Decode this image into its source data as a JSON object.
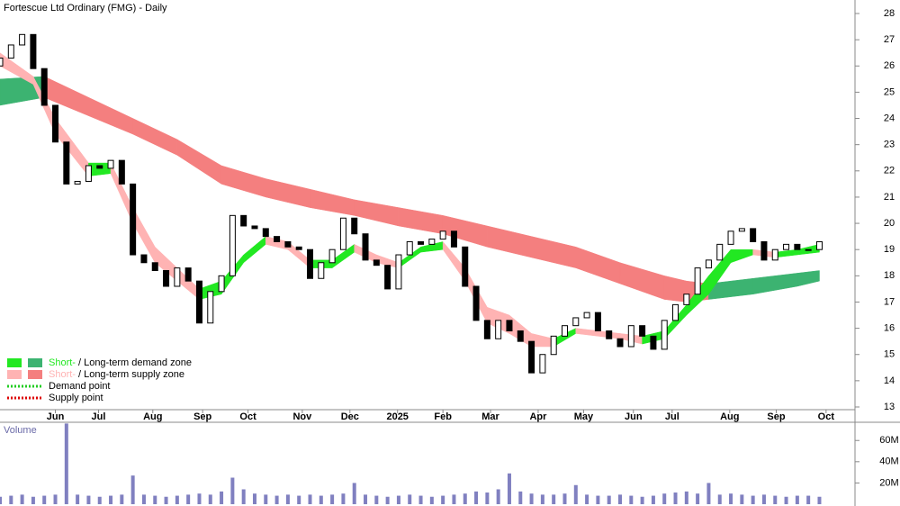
{
  "chart_data": {
    "type": "candlestick",
    "title": "Fortescue Ltd Ordinary (FMG) - Daily",
    "x": [
      0,
      1,
      2,
      3,
      4,
      5,
      6,
      7,
      8,
      9,
      10,
      11,
      12,
      13,
      14,
      15,
      16,
      17,
      18,
      19,
      20,
      21,
      22,
      23,
      24,
      25,
      26,
      27,
      28,
      29,
      30,
      31,
      32,
      33,
      34,
      35,
      36,
      37,
      38,
      39,
      40,
      41,
      42,
      43,
      44,
      45,
      46,
      47,
      48,
      49,
      50,
      51,
      52,
      53,
      54,
      55,
      56,
      57,
      58,
      59,
      60,
      61,
      62,
      63,
      64,
      65,
      66,
      67,
      68,
      69,
      70,
      71,
      72,
      73,
      74
    ],
    "open": [
      26.0,
      26.3,
      26.8,
      27.2,
      25.9,
      24.5,
      23.1,
      21.5,
      21.6,
      22.2,
      22.1,
      22.4,
      21.5,
      18.8,
      18.5,
      18.2,
      17.6,
      18.3,
      17.8,
      16.2,
      17.4,
      18.0,
      20.3,
      19.9,
      19.8,
      19.5,
      19.3,
      19.1,
      19.0,
      17.9,
      18.5,
      19.0,
      20.2,
      19.6,
      18.6,
      18.4,
      17.5,
      18.8,
      19.3,
      19.2,
      19.4,
      19.7,
      19.1,
      17.6,
      16.3,
      15.6,
      16.3,
      15.9,
      15.5,
      14.3,
      15.0,
      15.7,
      16.1,
      16.4,
      16.6,
      15.9,
      15.6,
      15.3,
      16.1,
      15.7,
      15.2,
      16.3,
      16.9,
      17.3,
      18.3,
      18.6,
      19.2,
      19.7,
      19.8,
      19.3,
      18.6,
      19.0,
      19.2,
      19.0,
      19.0
    ],
    "close": [
      26.3,
      26.8,
      27.2,
      25.9,
      24.5,
      23.1,
      21.5,
      21.6,
      22.2,
      22.1,
      22.4,
      21.5,
      18.8,
      18.5,
      18.2,
      17.6,
      18.3,
      17.8,
      16.2,
      17.4,
      18.0,
      20.3,
      19.9,
      19.8,
      19.5,
      19.3,
      19.1,
      19.0,
      17.9,
      18.5,
      19.0,
      20.2,
      19.6,
      18.6,
      18.4,
      17.5,
      18.8,
      19.3,
      19.2,
      19.4,
      19.7,
      19.1,
      17.6,
      16.3,
      15.6,
      16.3,
      15.9,
      15.5,
      14.3,
      15.0,
      15.7,
      16.1,
      16.4,
      16.6,
      15.9,
      15.6,
      15.3,
      16.1,
      15.7,
      15.2,
      16.3,
      16.9,
      17.3,
      18.3,
      18.6,
      19.2,
      19.7,
      19.8,
      19.3,
      18.6,
      19.0,
      19.2,
      19.0,
      19.0,
      19.3
    ],
    "short_band": {
      "x": [
        0,
        3,
        5,
        8,
        10,
        12,
        14,
        16,
        18,
        20,
        22,
        24,
        26,
        28,
        30,
        32,
        34,
        36,
        38,
        40,
        42,
        44,
        46,
        48,
        50,
        52,
        54,
        56,
        58,
        60,
        62,
        64,
        66,
        68,
        70,
        72,
        74
      ],
      "upper": [
        26.5,
        25.6,
        24.0,
        22.3,
        22.3,
        20.6,
        19.1,
        18.3,
        17.5,
        17.8,
        18.8,
        19.5,
        19.3,
        18.6,
        18.6,
        19.2,
        18.8,
        18.5,
        19.1,
        19.3,
        18.3,
        16.8,
        16.5,
        15.8,
        15.6,
        16.0,
        15.9,
        15.8,
        15.7,
        15.9,
        16.9,
        18.0,
        19.0,
        19.0,
        18.9,
        19.0,
        19.2
      ],
      "lower": [
        26.0,
        25.3,
        23.4,
        21.8,
        21.9,
        20.0,
        18.5,
        17.8,
        17.1,
        17.3,
        18.5,
        19.2,
        19.0,
        18.3,
        18.3,
        18.9,
        18.5,
        18.3,
        18.9,
        19.0,
        17.8,
        16.2,
        15.8,
        15.3,
        15.3,
        15.8,
        15.7,
        15.6,
        15.4,
        15.6,
        16.5,
        17.3,
        18.5,
        18.8,
        18.7,
        18.8,
        18.9
      ]
    },
    "long_band": {
      "x": [
        0,
        4,
        12,
        16,
        20,
        24,
        28,
        32,
        36,
        40,
        44,
        48,
        52,
        56,
        60,
        62,
        64,
        68,
        72,
        74
      ],
      "upper": [
        25.5,
        25.6,
        24.0,
        23.2,
        22.2,
        21.7,
        21.3,
        20.9,
        20.6,
        20.3,
        19.9,
        19.5,
        19.1,
        18.5,
        18.0,
        17.8,
        17.7,
        17.9,
        18.1,
        18.2
      ],
      "lower": [
        24.5,
        24.8,
        23.4,
        22.6,
        21.5,
        21.0,
        20.6,
        20.3,
        19.9,
        19.6,
        19.1,
        18.7,
        18.3,
        17.7,
        17.1,
        17.0,
        17.1,
        17.3,
        17.6,
        17.8
      ]
    },
    "colors": {
      "up": "#ffffff",
      "down": "#000000",
      "short_demand": "#22e822",
      "long_demand": "#3cb371",
      "short_supply": "#ffb3b3",
      "long_supply": "#f47f7f",
      "demand_point": "#22cc22",
      "supply_point": "#dd0000",
      "volume": "#8080c0"
    },
    "xlim": [
      0,
      76.4
    ],
    "xticks": [
      {
        "value": 5.0,
        "label": "Jun"
      },
      {
        "value": 8.9,
        "label": "Jul"
      },
      {
        "value": 13.8,
        "label": "Aug"
      },
      {
        "value": 18.3,
        "label": "Sep"
      },
      {
        "value": 22.4,
        "label": "Oct"
      },
      {
        "value": 27.3,
        "label": "Nov"
      },
      {
        "value": 31.6,
        "label": "Dec"
      },
      {
        "value": 35.9,
        "label": "2025"
      },
      {
        "value": 40.0,
        "label": "Feb"
      },
      {
        "value": 44.3,
        "label": "Mar"
      },
      {
        "value": 48.6,
        "label": "Apr"
      },
      {
        "value": 52.7,
        "label": "May"
      },
      {
        "value": 57.2,
        "label": "Jun"
      },
      {
        "value": 60.7,
        "label": "Jul"
      },
      {
        "value": 65.9,
        "label": "Aug"
      },
      {
        "value": 70.1,
        "label": "Sep"
      },
      {
        "value": 74.6,
        "label": "Oct"
      }
    ],
    "ylim": [
      13,
      28
    ],
    "yticks": [
      13,
      14,
      15,
      16,
      17,
      18,
      19,
      20,
      21,
      22,
      23,
      24,
      25,
      26,
      27,
      28
    ],
    "legend": [
      {
        "short": "Short-",
        "long": "/ Long-term demand zone"
      },
      {
        "short": "Short-",
        "long": "/ Long-term supply zone"
      },
      {
        "text": "Demand point"
      },
      {
        "text": "Supply point"
      }
    ],
    "volume": {
      "label": "Volume",
      "values": [
        7,
        8,
        9,
        7,
        8,
        9,
        76,
        9,
        8,
        7,
        8,
        9,
        27,
        9,
        8,
        7,
        8,
        9,
        10,
        9,
        12,
        25,
        14,
        10,
        9,
        8,
        9,
        8,
        9,
        8,
        9,
        10,
        20,
        9,
        8,
        7,
        8,
        9,
        8,
        7,
        8,
        9,
        10,
        12,
        11,
        14,
        29,
        12,
        10,
        9,
        9,
        10,
        18,
        9,
        8,
        8,
        9,
        8,
        7,
        8,
        10,
        11,
        12,
        10,
        20,
        9,
        10,
        9,
        8,
        9,
        8,
        7,
        8,
        8,
        7
      ],
      "ylim": [
        0,
        78
      ],
      "yticks": [
        {
          "value": 20,
          "label": "20M"
        },
        {
          "value": 40,
          "label": "40M"
        },
        {
          "value": 60,
          "label": "60M"
        }
      ]
    }
  }
}
